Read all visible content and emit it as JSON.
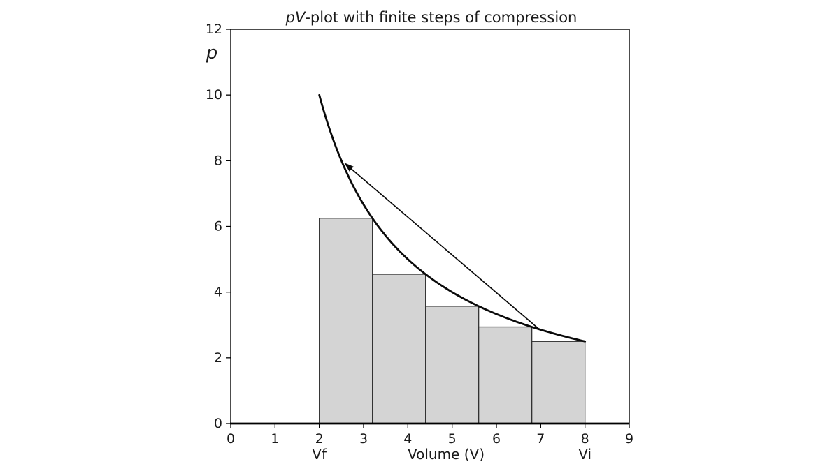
{
  "figure": {
    "background": "#ffffff"
  },
  "chart_data": {
    "type": "bar",
    "title": "pV-plot with finite steps of compression",
    "title_italic_prefix": "pV",
    "title_rest": "-plot with finite steps of compression",
    "xlabel": "Volume (V)",
    "ylabel": "p",
    "xlim": [
      0,
      9
    ],
    "ylim": [
      0,
      12
    ],
    "xticks": [
      0,
      1,
      2,
      3,
      4,
      5,
      6,
      7,
      8,
      9
    ],
    "yticks": [
      0,
      2,
      4,
      6,
      8,
      10,
      12
    ],
    "extra_xtick_labels": [
      {
        "x": 2,
        "label": "Vf"
      },
      {
        "x": 8,
        "label": "Vi"
      }
    ],
    "grid": false,
    "legend": "none",
    "curve": {
      "description": "isotherm p = 20/V",
      "constant": 20,
      "v_start": 2,
      "v_end": 8
    },
    "bars": [
      {
        "v_left": 2.0,
        "v_right": 3.2,
        "height": 6.25
      },
      {
        "v_left": 3.2,
        "v_right": 4.4,
        "height": 4.545
      },
      {
        "v_left": 4.4,
        "v_right": 5.6,
        "height": 3.571
      },
      {
        "v_left": 5.6,
        "v_right": 6.8,
        "height": 2.941
      },
      {
        "v_left": 6.8,
        "v_right": 8.0,
        "height": 2.5
      }
    ],
    "arrow": {
      "tail": [
        6.95,
        2.89
      ],
      "tip": [
        2.56,
        7.94
      ]
    },
    "colors": {
      "bar_fill": "#d4d4d4",
      "bar_edge": "#333333",
      "curve": "#0a0a0a",
      "arrow": "#0a0a0a",
      "axis": "#000000",
      "text": "#1a1a1a"
    }
  }
}
